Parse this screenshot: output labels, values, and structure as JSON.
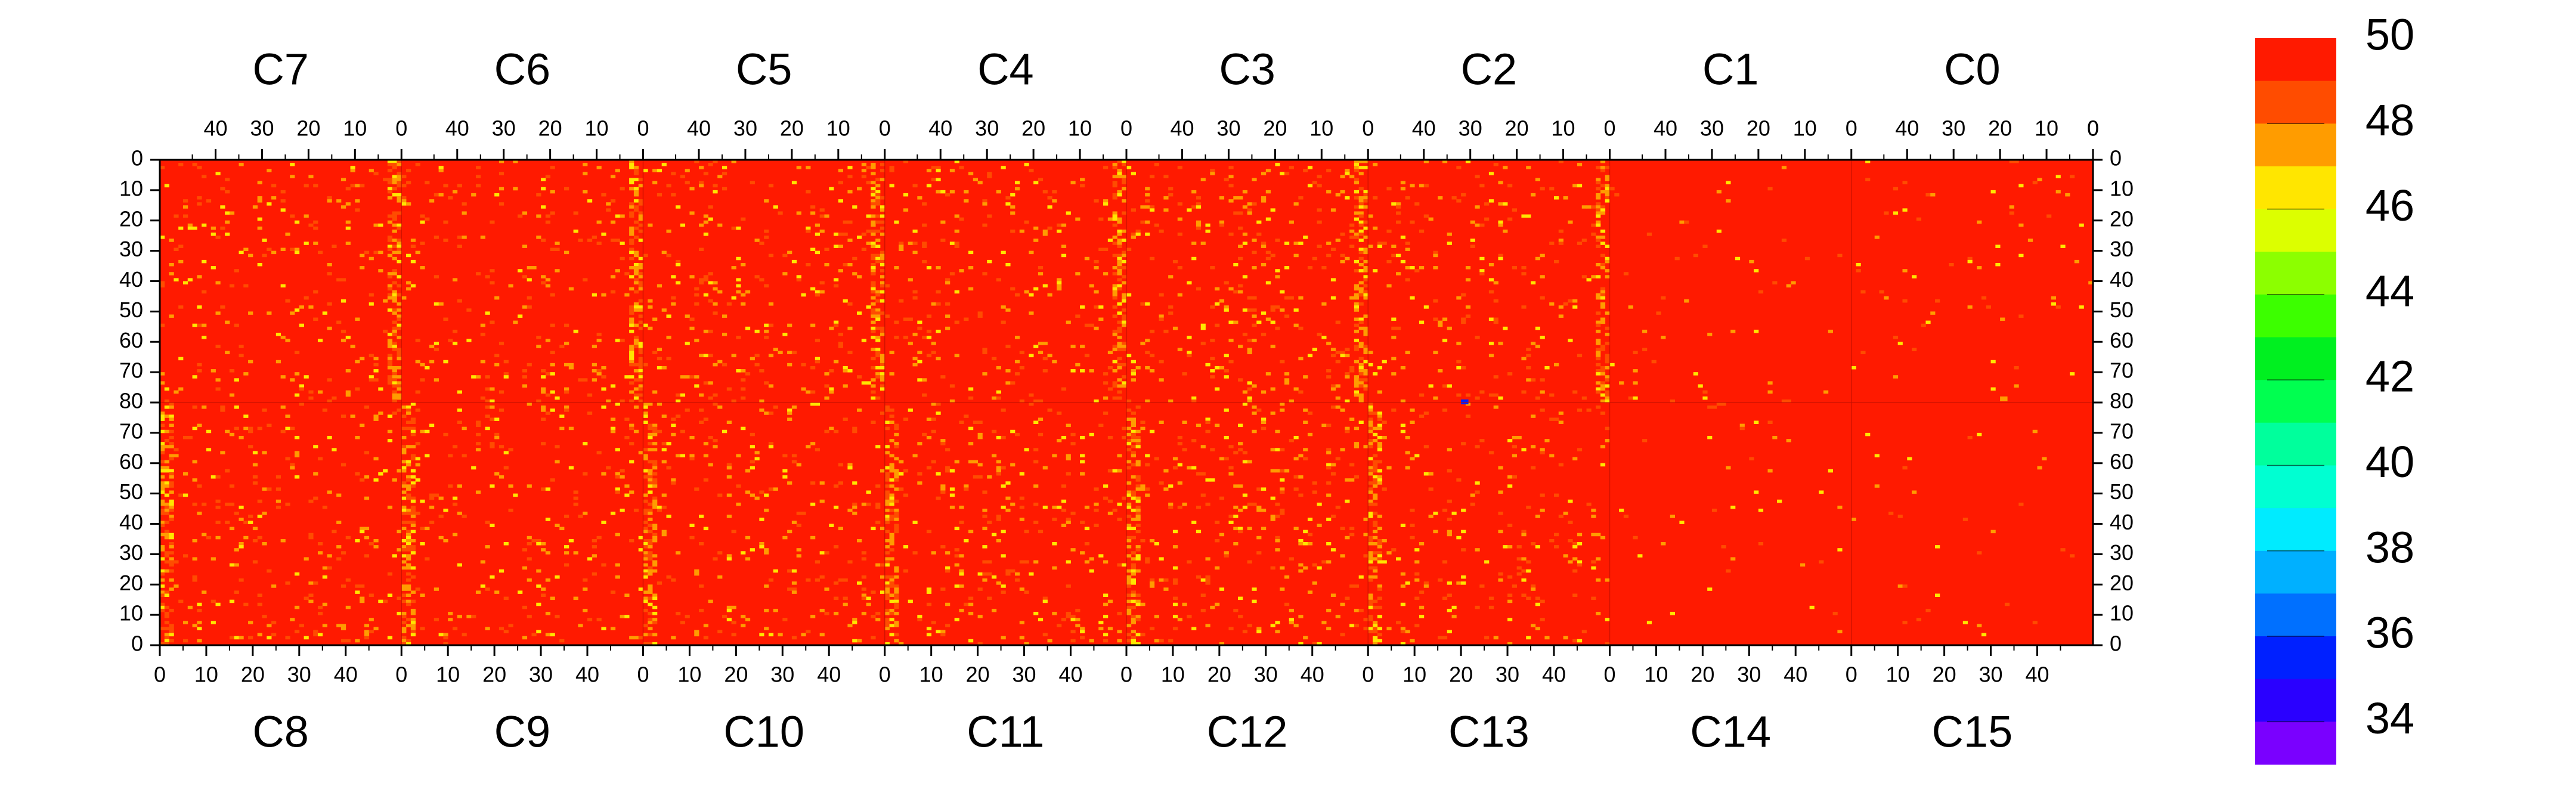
{
  "chart_data": {
    "type": "heatmap",
    "title": "",
    "xlabel": "",
    "ylabel": "",
    "top_chip_labels": [
      "C7",
      "C6",
      "C5",
      "C4",
      "C3",
      "C2",
      "C1",
      "C0"
    ],
    "bottom_chip_labels": [
      "C8",
      "C9",
      "C10",
      "C11",
      "C12",
      "C13",
      "C14",
      "C15"
    ],
    "columns_per_chip": 52,
    "rows_per_half": 80,
    "top_x_ticks": [
      "40",
      "30",
      "20",
      "10",
      "0"
    ],
    "top_x_tick_values": [
      40,
      30,
      20,
      10,
      0
    ],
    "bottom_x_ticks": [
      "0",
      "10",
      "20",
      "30",
      "40"
    ],
    "bottom_x_tick_values": [
      0,
      10,
      20,
      30,
      40
    ],
    "y_ticks_top_half": [
      "0",
      "10",
      "20",
      "30",
      "40",
      "50",
      "60",
      "70",
      "80"
    ],
    "y_ticks_bottom_half": [
      "70",
      "60",
      "50",
      "40",
      "30",
      "20",
      "10",
      "0"
    ],
    "color_scale": {
      "min": 33,
      "max": 50,
      "tick_labels": [
        "50",
        "48",
        "46",
        "44",
        "42",
        "40",
        "38",
        "36",
        "34"
      ],
      "tick_values": [
        50,
        48,
        46,
        44,
        42,
        40,
        38,
        36,
        34
      ],
      "bands": [
        {
          "from": 49,
          "to": 50,
          "color": "#ff1a00"
        },
        {
          "from": 48,
          "to": 49,
          "color": "#ff4c00"
        },
        {
          "from": 47,
          "to": 48,
          "color": "#ff9c00"
        },
        {
          "from": 46,
          "to": 47,
          "color": "#ffe600"
        },
        {
          "from": 45,
          "to": 46,
          "color": "#dcff00"
        },
        {
          "from": 44,
          "to": 45,
          "color": "#8cff00"
        },
        {
          "from": 43,
          "to": 44,
          "color": "#3cff00"
        },
        {
          "from": 42,
          "to": 43,
          "color": "#00f020"
        },
        {
          "from": 41,
          "to": 42,
          "color": "#00ff50"
        },
        {
          "from": 40,
          "to": 41,
          "color": "#00ff9c"
        },
        {
          "from": 39,
          "to": 40,
          "color": "#00ffd2"
        },
        {
          "from": 38,
          "to": 39,
          "color": "#00ebff"
        },
        {
          "from": 37,
          "to": 38,
          "color": "#00b0ff"
        },
        {
          "from": 36,
          "to": 37,
          "color": "#0070ff"
        },
        {
          "from": 35,
          "to": 36,
          "color": "#0020ff"
        },
        {
          "from": 34,
          "to": 35,
          "color": "#2a00ff"
        },
        {
          "from": 33,
          "to": 34,
          "color": "#7a00ff"
        }
      ]
    },
    "baseline_value": 50,
    "edge_column_value": 47.5,
    "noise_levels": {
      "C7": 0.05,
      "C6": 0.05,
      "C5": 0.06,
      "C4": 0.06,
      "C3": 0.07,
      "C2": 0.05,
      "C1": 0.012,
      "C0": 0.015,
      "C8": 0.06,
      "C9": 0.05,
      "C10": 0.06,
      "C11": 0.06,
      "C12": 0.07,
      "C13": 0.05,
      "C14": 0.01,
      "C15": 0.01
    },
    "outliers": [
      {
        "chip": "C13",
        "x": 20,
        "y": 80,
        "value": 35
      },
      {
        "chip": "C0",
        "x": 19,
        "y": 80,
        "value": 47.5
      }
    ]
  }
}
